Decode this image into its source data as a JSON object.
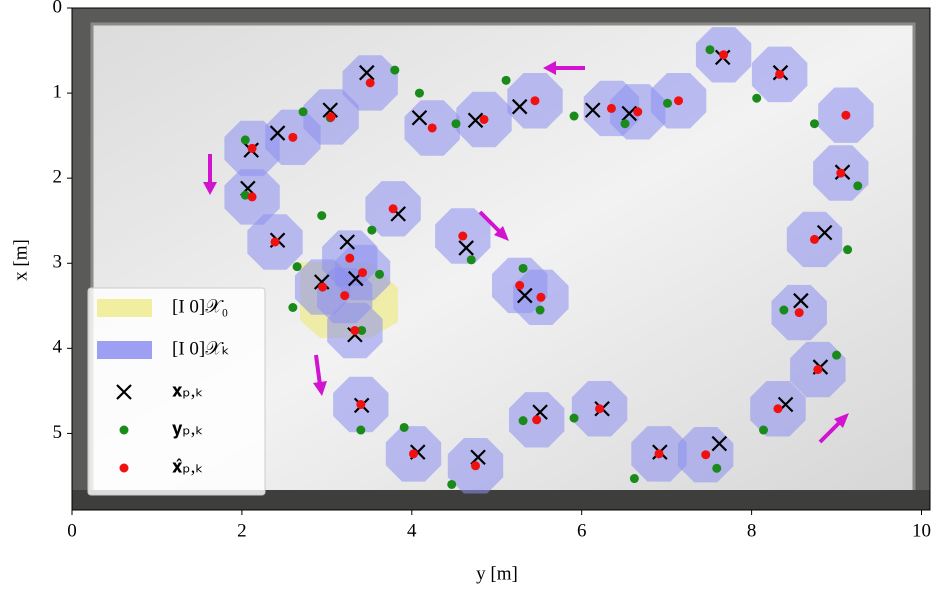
{
  "chart_data": {
    "type": "scatter",
    "xlabel": "y [m]",
    "ylabel": "x [m]",
    "xlim": [
      0,
      10.1
    ],
    "ylim": [
      5.9,
      0
    ],
    "xticks": [
      0,
      2,
      4,
      6,
      8,
      10
    ],
    "yticks": [
      0,
      1,
      2,
      3,
      4,
      5
    ],
    "legend": "lower left",
    "regions": [
      {
        "name": "[I 0]𝒳₀",
        "color": "#eeeb8f"
      },
      {
        "name": "[I 0]𝒳ₖ",
        "color": "#8c8ff0"
      }
    ],
    "series": [
      {
        "name": "𝐱ₚ,ₖ",
        "color": "#000000",
        "marker": "x",
        "x": [
          3.47,
          3.04,
          2.42,
          2.11,
          4.09,
          4.75,
          5.27,
          6.13,
          6.56,
          7.66,
          8.34,
          9.07,
          8.86,
          8.58,
          8.81,
          8.4,
          7.62,
          6.92,
          6.24,
          5.51,
          4.78,
          4.07,
          3.41,
          3.33,
          2.94,
          3.34,
          3.24,
          3.84,
          4.64,
          5.33,
          2.42,
          2.07
        ],
        "values": [
          0.76,
          1.2,
          1.47,
          1.67,
          1.29,
          1.32,
          1.16,
          1.2,
          1.24,
          0.58,
          0.76,
          1.93,
          2.64,
          3.44,
          4.22,
          4.66,
          5.12,
          5.22,
          4.71,
          4.75,
          5.28,
          5.22,
          4.67,
          3.84,
          3.22,
          3.18,
          2.75,
          2.42,
          2.82,
          3.38,
          2.73,
          2.12
        ]
      },
      {
        "name": "𝐲ₚ,ₖ",
        "color": "#1a8a1a",
        "marker": "dot",
        "x": [
          3.8,
          3.04,
          2.72,
          2.04,
          4.09,
          4.52,
          5.11,
          5.91,
          6.51,
          7.01,
          7.51,
          8.06,
          8.74,
          9.25,
          9.13,
          8.38,
          9.0,
          8.14,
          7.59,
          6.62,
          5.91,
          5.31,
          4.47,
          3.91,
          3.4,
          3.41,
          2.6,
          2.65,
          3.62,
          3.53,
          2.94,
          4.7,
          5.51,
          5.31,
          2.04
        ],
        "values": [
          0.73,
          1.29,
          1.22,
          1.55,
          1.0,
          1.36,
          0.85,
          1.27,
          1.36,
          1.12,
          0.49,
          1.06,
          1.36,
          2.09,
          2.84,
          3.55,
          4.08,
          4.96,
          5.41,
          5.53,
          4.82,
          4.85,
          5.6,
          4.93,
          4.96,
          3.79,
          3.52,
          3.04,
          3.13,
          2.61,
          2.44,
          2.96,
          3.55,
          3.06,
          2.2
        ]
      },
      {
        "name": "𝐱̂ₚ,ₖ",
        "color": "#f01010",
        "marker": "dot",
        "x": [
          3.51,
          3.05,
          2.6,
          2.12,
          4.24,
          4.85,
          5.45,
          6.35,
          6.66,
          7.14,
          7.67,
          8.33,
          9.11,
          9.05,
          8.74,
          8.56,
          8.78,
          8.31,
          7.46,
          6.91,
          6.21,
          5.47,
          4.75,
          4.02,
          3.4,
          3.33,
          2.95,
          3.21,
          3.42,
          3.27,
          3.78,
          4.6,
          5.27,
          5.52,
          2.39,
          2.12
        ],
        "values": [
          0.88,
          1.28,
          1.52,
          1.65,
          1.41,
          1.31,
          1.09,
          1.18,
          1.22,
          1.09,
          0.55,
          0.78,
          1.26,
          1.94,
          2.72,
          3.58,
          4.25,
          4.71,
          5.25,
          5.24,
          4.71,
          4.84,
          5.38,
          5.24,
          4.66,
          3.79,
          3.28,
          3.38,
          3.11,
          2.94,
          2.36,
          2.68,
          3.26,
          3.4,
          2.75,
          2.22
        ]
      }
    ]
  }
}
